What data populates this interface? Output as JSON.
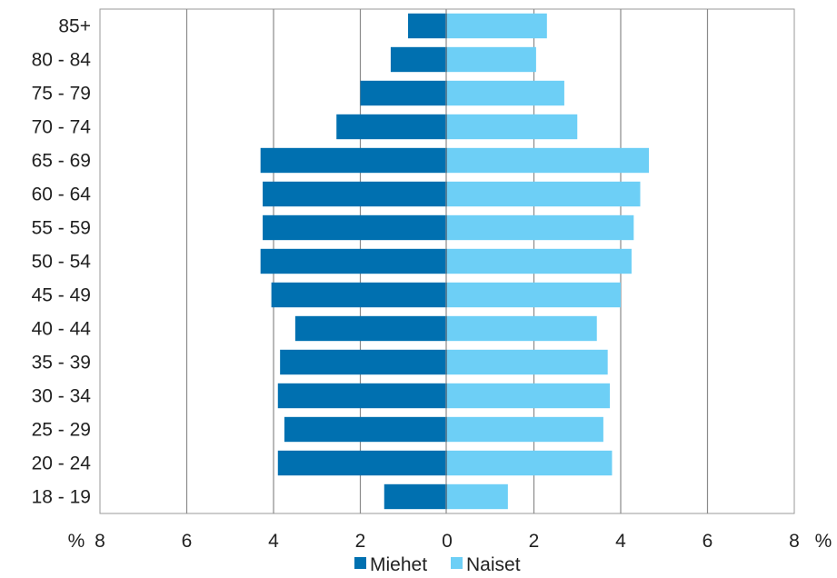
{
  "chart_data": {
    "type": "bar",
    "orientation": "horizontal",
    "layout": "population-pyramid",
    "categories": [
      "85+",
      "80 - 84",
      "75 - 79",
      "70 - 74",
      "65 - 69",
      "60 - 64",
      "55 - 59",
      "50 - 54",
      "45 - 49",
      "40 - 44",
      "35 - 39",
      "30 - 34",
      "25 - 29",
      "20 - 24",
      "18 - 19"
    ],
    "series": [
      {
        "name": "Miehet",
        "side": "left",
        "color": "#0070b0",
        "values": [
          0.9,
          1.3,
          2.0,
          2.55,
          4.3,
          4.25,
          4.25,
          4.3,
          4.05,
          3.5,
          3.85,
          3.9,
          3.75,
          3.9,
          1.45
        ]
      },
      {
        "name": "Naiset",
        "side": "right",
        "color": "#6dcff6",
        "values": [
          2.3,
          2.05,
          2.7,
          3.0,
          4.65,
          4.45,
          4.3,
          4.25,
          4.0,
          3.45,
          3.7,
          3.75,
          3.6,
          3.8,
          1.4
        ]
      }
    ],
    "x_ticks": [
      "8",
      "6",
      "4",
      "2",
      "0",
      "2",
      "4",
      "6",
      "8"
    ],
    "x_unit_left": "%",
    "x_unit_right": "%",
    "xlim": [
      -8,
      8
    ],
    "grid": true,
    "legend_position": "bottom"
  }
}
